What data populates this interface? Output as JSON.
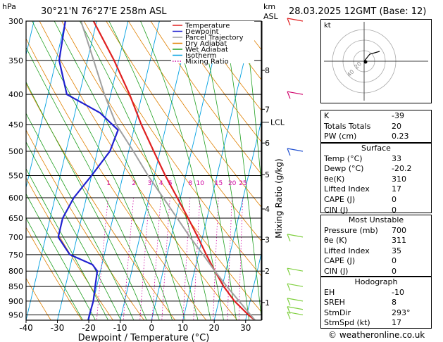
{
  "header": {
    "location": "30°21'N  76°27'E  258m  ASL",
    "datetime": "28.03.2025  12GMT  (Base: 12)",
    "hpa_label": "hPa",
    "km_label": "km",
    "asl_label": "ASL"
  },
  "chart_data": {
    "type": "line",
    "xlabel": "Dewpoint / Temperature (°C)",
    "ylabel": "",
    "right_axis_label": "Mixing Ratio (g/kg)",
    "xlim": [
      -40,
      35
    ],
    "ylim": [
      300,
      970
    ],
    "pressure_ticks": [
      300,
      350,
      400,
      450,
      500,
      550,
      600,
      650,
      700,
      750,
      800,
      850,
      900,
      950
    ],
    "temp_ticks": [
      -40,
      -30,
      -20,
      -10,
      0,
      10,
      20,
      30
    ],
    "km_ticks": [
      {
        "label": "8",
        "p": 364
      },
      {
        "label": "7",
        "p": 424
      },
      {
        "label": "6",
        "p": 484
      },
      {
        "label": "5",
        "p": 548
      },
      {
        "label": "4",
        "p": 627
      },
      {
        "label": "3",
        "p": 707
      },
      {
        "label": "2",
        "p": 800
      },
      {
        "label": "1",
        "p": 905
      }
    ],
    "lcl": {
      "label": "LCL",
      "p": 446
    },
    "mixing_ratio_labels": [
      "1",
      "2",
      "3",
      "4",
      "5",
      "8",
      "10",
      "15",
      "20",
      "25"
    ],
    "legend": [
      {
        "name": "Temperature",
        "color": "#e02020",
        "style": "solid"
      },
      {
        "name": "Dewpoint",
        "color": "#2020d0",
        "style": "solid"
      },
      {
        "name": "Parcel Trajectory",
        "color": "#a0a0a0",
        "style": "solid"
      },
      {
        "name": "Dry Adiabat",
        "color": "#e08000",
        "style": "solid"
      },
      {
        "name": "Wet Adiabat",
        "color": "#20a020",
        "style": "solid"
      },
      {
        "name": "Isotherm",
        "color": "#00a0e0",
        "style": "solid"
      },
      {
        "name": "Mixing Ratio",
        "color": "#d000a0",
        "style": "dotted"
      }
    ],
    "series": [
      {
        "name": "Temperature",
        "color": "#e02020",
        "points": [
          [
            970,
            33
          ],
          [
            950,
            30.5
          ],
          [
            900,
            25
          ],
          [
            850,
            20.5
          ],
          [
            800,
            16.5
          ],
          [
            750,
            12.5
          ],
          [
            700,
            8.5
          ],
          [
            650,
            4
          ],
          [
            600,
            -1
          ],
          [
            550,
            -6.5
          ],
          [
            500,
            -12
          ],
          [
            450,
            -18
          ],
          [
            400,
            -24
          ],
          [
            350,
            -31.5
          ],
          [
            300,
            -41
          ]
        ]
      },
      {
        "name": "Dewpoint",
        "color": "#2020d0",
        "points": [
          [
            970,
            -20.2
          ],
          [
            950,
            -20.2
          ],
          [
            900,
            -20
          ],
          [
            850,
            -20.5
          ],
          [
            800,
            -21
          ],
          [
            780,
            -23
          ],
          [
            750,
            -31
          ],
          [
            700,
            -36
          ],
          [
            650,
            -36
          ],
          [
            600,
            -34
          ],
          [
            550,
            -30
          ],
          [
            500,
            -26
          ],
          [
            460,
            -25
          ],
          [
            430,
            -32
          ],
          [
            400,
            -44
          ],
          [
            350,
            -49
          ],
          [
            300,
            -50
          ]
        ]
      },
      {
        "name": "Parcel Trajectory",
        "color": "#a0a0a0",
        "points": [
          [
            970,
            33
          ],
          [
            900,
            26.5
          ],
          [
            850,
            21.5
          ],
          [
            800,
            16.5
          ],
          [
            750,
            11.5
          ],
          [
            700,
            6
          ],
          [
            650,
            0.5
          ],
          [
            600,
            -5.5
          ],
          [
            550,
            -12
          ],
          [
            500,
            -18.5
          ],
          [
            450,
            -26
          ],
          [
            400,
            -32
          ],
          [
            350,
            -38
          ],
          [
            300,
            -45
          ]
        ]
      }
    ]
  },
  "hodograph": {
    "label": "kt",
    "ring_labels": [
      "20",
      "40"
    ]
  },
  "indices_box": {
    "rows": [
      {
        "label": "K",
        "value": "-39"
      },
      {
        "label": "Totals Totals",
        "value": "20"
      },
      {
        "label": "PW (cm)",
        "value": "0.23"
      }
    ]
  },
  "surface_box": {
    "title": "Surface",
    "rows": [
      {
        "label": "Temp (°C)",
        "value": "33"
      },
      {
        "label": "Dewp (°C)",
        "value": "-20.2"
      },
      {
        "label": "θe(K)",
        "value": "310"
      },
      {
        "label": "Lifted Index",
        "value": "17"
      },
      {
        "label": "CAPE (J)",
        "value": "0"
      },
      {
        "label": "CIN (J)",
        "value": "0"
      }
    ]
  },
  "unstable_box": {
    "title": "Most Unstable",
    "rows": [
      {
        "label": "Pressure (mb)",
        "value": "700"
      },
      {
        "label": "θe (K)",
        "value": "311"
      },
      {
        "label": "Lifted Index",
        "value": "35"
      },
      {
        "label": "CAPE (J)",
        "value": "0"
      },
      {
        "label": "CIN (J)",
        "value": "0"
      }
    ]
  },
  "hodo_box": {
    "title": "Hodograph",
    "rows": [
      {
        "label": "EH",
        "value": "-10"
      },
      {
        "label": "SREH",
        "value": "8"
      },
      {
        "label": "StmDir",
        "value": "293°"
      },
      {
        "label": "StmSpd (kt)",
        "value": "17"
      }
    ]
  },
  "footer": {
    "copyright": "© weatheronline.co.uk"
  }
}
